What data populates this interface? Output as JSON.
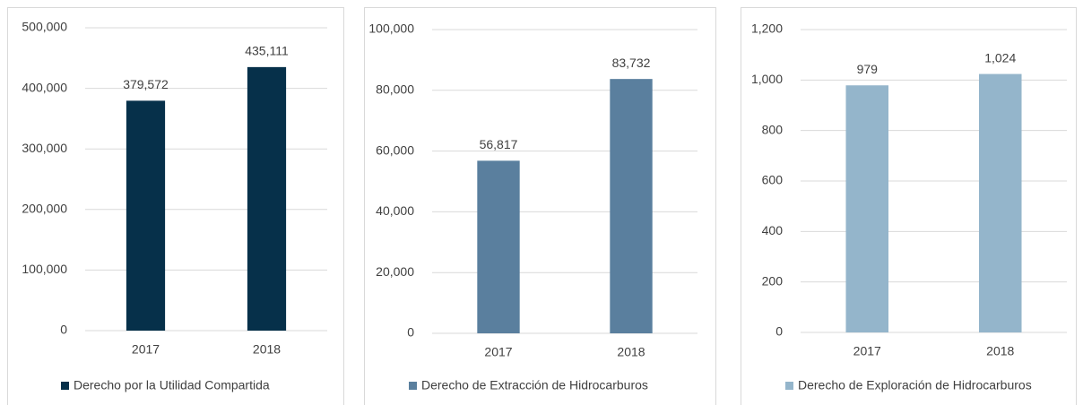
{
  "chart_data": [
    {
      "type": "bar",
      "categories": [
        "2017",
        "2018"
      ],
      "series": [
        {
          "name": "Derecho por la Utilidad Compartida",
          "color": "#06304a",
          "values": [
            379572,
            435111
          ],
          "value_labels": [
            "379,572",
            "435,111"
          ]
        }
      ],
      "ylim": [
        0,
        500000
      ],
      "yticks": [
        0,
        {
          "value": 100000,
          "label": "100,000"
        },
        {
          "value": 200000,
          "label": "200,000"
        },
        {
          "value": 300000,
          "label": "300,000"
        },
        {
          "value": 400000,
          "label": "400,000"
        },
        {
          "value": 500000,
          "label": "500,000"
        }
      ],
      "grid": true,
      "legend": "bottom"
    },
    {
      "type": "bar",
      "categories": [
        "2017",
        "2018"
      ],
      "series": [
        {
          "name": "Derecho de Extracción de Hidrocarburos",
          "color": "#5a7f9e",
          "values": [
            56817,
            83732
          ],
          "value_labels": [
            "56,817",
            "83,732"
          ]
        }
      ],
      "ylim": [
        0,
        100000
      ],
      "yticks": [
        0,
        {
          "value": 20000,
          "label": "20,000"
        },
        {
          "value": 40000,
          "label": "40,000"
        },
        {
          "value": 60000,
          "label": "60,000"
        },
        {
          "value": 80000,
          "label": "80,000"
        },
        {
          "value": 100000,
          "label": "100,000"
        }
      ],
      "grid": true,
      "legend": "bottom"
    },
    {
      "type": "bar",
      "categories": [
        "2017",
        "2018"
      ],
      "series": [
        {
          "name": "Derecho de Exploración de Hidrocarburos",
          "color": "#94b5cb",
          "values": [
            979,
            1024
          ],
          "value_labels": [
            "979",
            "1,024"
          ]
        }
      ],
      "ylim": [
        0,
        1200
      ],
      "yticks": [
        0,
        200,
        400,
        600,
        800,
        {
          "value": 1000,
          "label": "1,000"
        },
        {
          "value": 1200,
          "label": "1,200"
        }
      ],
      "grid": true,
      "legend": "bottom"
    }
  ]
}
